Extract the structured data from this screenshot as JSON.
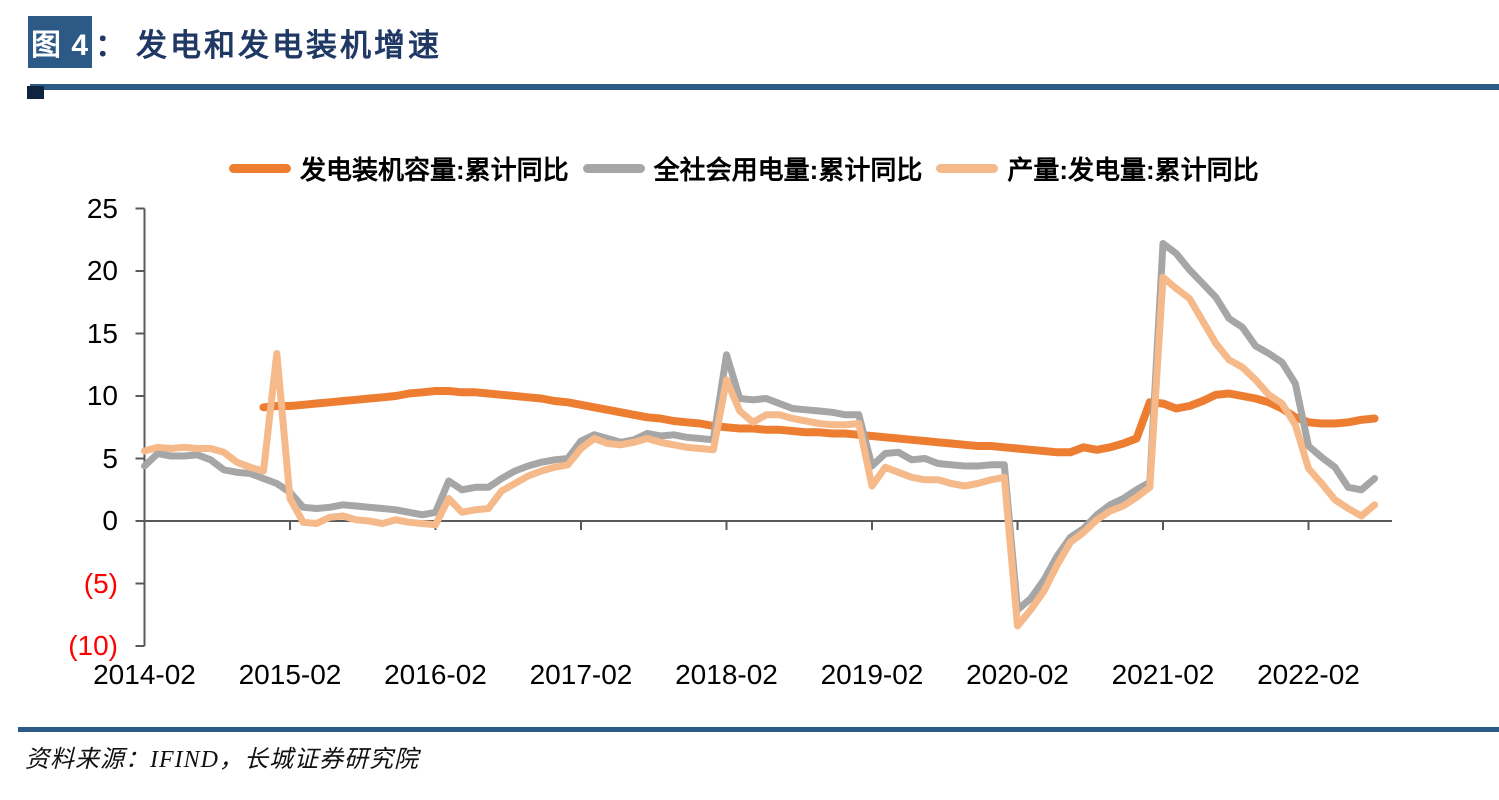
{
  "figure": {
    "label": "图 4",
    "separator": "：",
    "title": "发电和发电装机增速"
  },
  "source": {
    "text": "资料来源：IFIND，长城证券研究院"
  },
  "theme": {
    "accent_blue": "#2D5986",
    "title_text": "#1F3864",
    "axis": "#595959",
    "negative_tick": "#FF0000",
    "rule_square": "#0F2440"
  },
  "chart_data": {
    "type": "line",
    "title": "发电和发电装机增速",
    "xlabel": "",
    "ylabel": "",
    "ylim": [
      -10,
      25
    ],
    "grid": false,
    "legend_position": "top",
    "x_ticks": [
      "2014-02",
      "2015-02",
      "2016-02",
      "2017-02",
      "2018-02",
      "2019-02",
      "2020-02",
      "2021-02",
      "2022-02"
    ],
    "y_ticks": [
      {
        "label": "25",
        "value": 25,
        "negative": false
      },
      {
        "label": "20",
        "value": 20,
        "negative": false
      },
      {
        "label": "15",
        "value": 15,
        "negative": false
      },
      {
        "label": "10",
        "value": 10,
        "negative": false
      },
      {
        "label": "5",
        "value": 5,
        "negative": false
      },
      {
        "label": "0",
        "value": 0,
        "negative": false
      },
      {
        "label": "(5)",
        "value": -5,
        "negative": true
      },
      {
        "label": "(10)",
        "value": -10,
        "negative": true
      }
    ],
    "x": [
      "2014-02",
      "2014-03",
      "2014-04",
      "2014-05",
      "2014-06",
      "2014-07",
      "2014-08",
      "2014-09",
      "2014-10",
      "2014-11",
      "2014-12",
      "2015-02",
      "2015-03",
      "2015-04",
      "2015-05",
      "2015-06",
      "2015-07",
      "2015-08",
      "2015-09",
      "2015-10",
      "2015-11",
      "2015-12",
      "2016-02",
      "2016-03",
      "2016-04",
      "2016-05",
      "2016-06",
      "2016-07",
      "2016-08",
      "2016-09",
      "2016-10",
      "2016-11",
      "2016-12",
      "2017-02",
      "2017-03",
      "2017-04",
      "2017-05",
      "2017-06",
      "2017-07",
      "2017-08",
      "2017-09",
      "2017-10",
      "2017-11",
      "2017-12",
      "2018-02",
      "2018-03",
      "2018-04",
      "2018-05",
      "2018-06",
      "2018-07",
      "2018-08",
      "2018-09",
      "2018-10",
      "2018-11",
      "2018-12",
      "2019-02",
      "2019-03",
      "2019-04",
      "2019-05",
      "2019-06",
      "2019-07",
      "2019-08",
      "2019-09",
      "2019-10",
      "2019-11",
      "2019-12",
      "2020-02",
      "2020-03",
      "2020-04",
      "2020-05",
      "2020-06",
      "2020-07",
      "2020-08",
      "2020-09",
      "2020-10",
      "2020-11",
      "2020-12",
      "2021-02",
      "2021-03",
      "2021-04",
      "2021-05",
      "2021-06",
      "2021-07",
      "2021-08",
      "2021-09",
      "2021-10",
      "2021-11",
      "2021-12",
      "2022-02",
      "2022-03",
      "2022-04",
      "2022-05",
      "2022-06",
      "2022-07"
    ],
    "series": [
      {
        "name": "installed-capacity-yoy",
        "label": "发电装机容量:累计同比",
        "color": "#ED7D31",
        "width": 8,
        "start": 9,
        "values": [
          9.1,
          9.2,
          9.2,
          9.3,
          9.4,
          9.5,
          9.6,
          9.7,
          9.8,
          9.9,
          10.0,
          10.2,
          10.3,
          10.4,
          10.4,
          10.3,
          10.3,
          10.2,
          10.1,
          10.0,
          9.9,
          9.8,
          9.6,
          9.5,
          9.3,
          9.1,
          8.9,
          8.7,
          8.5,
          8.3,
          8.2,
          8.0,
          7.9,
          7.8,
          7.6,
          7.5,
          7.4,
          7.4,
          7.3,
          7.3,
          7.2,
          7.1,
          7.1,
          7.0,
          7.0,
          6.9,
          6.8,
          6.7,
          6.6,
          6.5,
          6.4,
          6.3,
          6.2,
          6.1,
          6.0,
          6.0,
          5.9,
          5.8,
          5.7,
          5.6,
          5.5,
          5.5,
          5.9,
          5.7,
          5.9,
          6.2,
          6.6,
          9.5,
          9.4,
          9.0,
          9.2,
          9.6,
          10.1,
          10.2,
          10.0,
          9.8,
          9.5,
          9.0,
          8.3,
          7.9,
          7.8,
          7.8,
          7.9,
          8.1,
          8.2
        ]
      },
      {
        "name": "electricity-consumption-yoy",
        "label": "全社会用电量:累计同比",
        "color": "#A6A6A6",
        "width": 7,
        "start": 0,
        "values": [
          4.4,
          5.4,
          5.2,
          5.2,
          5.3,
          4.9,
          4.1,
          3.9,
          3.8,
          3.4,
          3.0,
          2.3,
          1.1,
          1.0,
          1.1,
          1.3,
          1.2,
          1.1,
          1.0,
          0.9,
          0.7,
          0.5,
          0.7,
          3.2,
          2.5,
          2.7,
          2.7,
          3.4,
          4.0,
          4.4,
          4.7,
          4.9,
          5.0,
          6.4,
          6.9,
          6.6,
          6.3,
          6.5,
          7.0,
          6.8,
          6.9,
          6.7,
          6.6,
          6.5,
          13.3,
          9.8,
          9.7,
          9.8,
          9.4,
          9.0,
          8.9,
          8.8,
          8.7,
          8.5,
          8.5,
          4.4,
          5.4,
          5.5,
          4.9,
          5.0,
          4.6,
          4.5,
          4.4,
          4.4,
          4.5,
          4.5,
          -7.1,
          -6.2,
          -4.7,
          -2.8,
          -1.3,
          -0.6,
          0.5,
          1.3,
          1.8,
          2.5,
          3.1,
          22.2,
          21.4,
          20.1,
          19.0,
          17.9,
          16.2,
          15.5,
          14.0,
          13.4,
          12.7,
          11.0,
          6.0,
          5.1,
          4.3,
          2.7,
          2.5,
          3.4
        ]
      },
      {
        "name": "power-generation-yoy",
        "label": "产量:发电量:累计同比",
        "color": "#F5B98A",
        "width": 7,
        "start": 0,
        "values": [
          5.6,
          5.9,
          5.8,
          5.9,
          5.8,
          5.8,
          5.5,
          4.7,
          4.3,
          4.0,
          13.4,
          1.8,
          -0.1,
          -0.2,
          0.3,
          0.4,
          0.1,
          0.0,
          -0.2,
          0.1,
          -0.1,
          -0.2,
          -0.3,
          1.8,
          0.7,
          0.9,
          1.0,
          2.4,
          3.0,
          3.6,
          4.0,
          4.3,
          4.5,
          5.8,
          6.6,
          6.2,
          6.1,
          6.3,
          6.6,
          6.3,
          6.1,
          5.9,
          5.8,
          5.7,
          11.3,
          8.8,
          7.9,
          8.5,
          8.5,
          8.2,
          8.0,
          7.8,
          7.7,
          7.7,
          7.8,
          2.8,
          4.3,
          3.9,
          3.5,
          3.3,
          3.3,
          3.0,
          2.8,
          3.0,
          3.3,
          3.5,
          -8.4,
          -7.1,
          -5.6,
          -3.5,
          -1.7,
          -0.9,
          0.1,
          0.8,
          1.2,
          1.9,
          2.7,
          19.5,
          18.6,
          17.8,
          16.0,
          14.2,
          12.9,
          12.3,
          11.3,
          10.1,
          9.4,
          7.7,
          4.2,
          3.0,
          1.7,
          1.0,
          0.4,
          1.3
        ]
      }
    ]
  }
}
